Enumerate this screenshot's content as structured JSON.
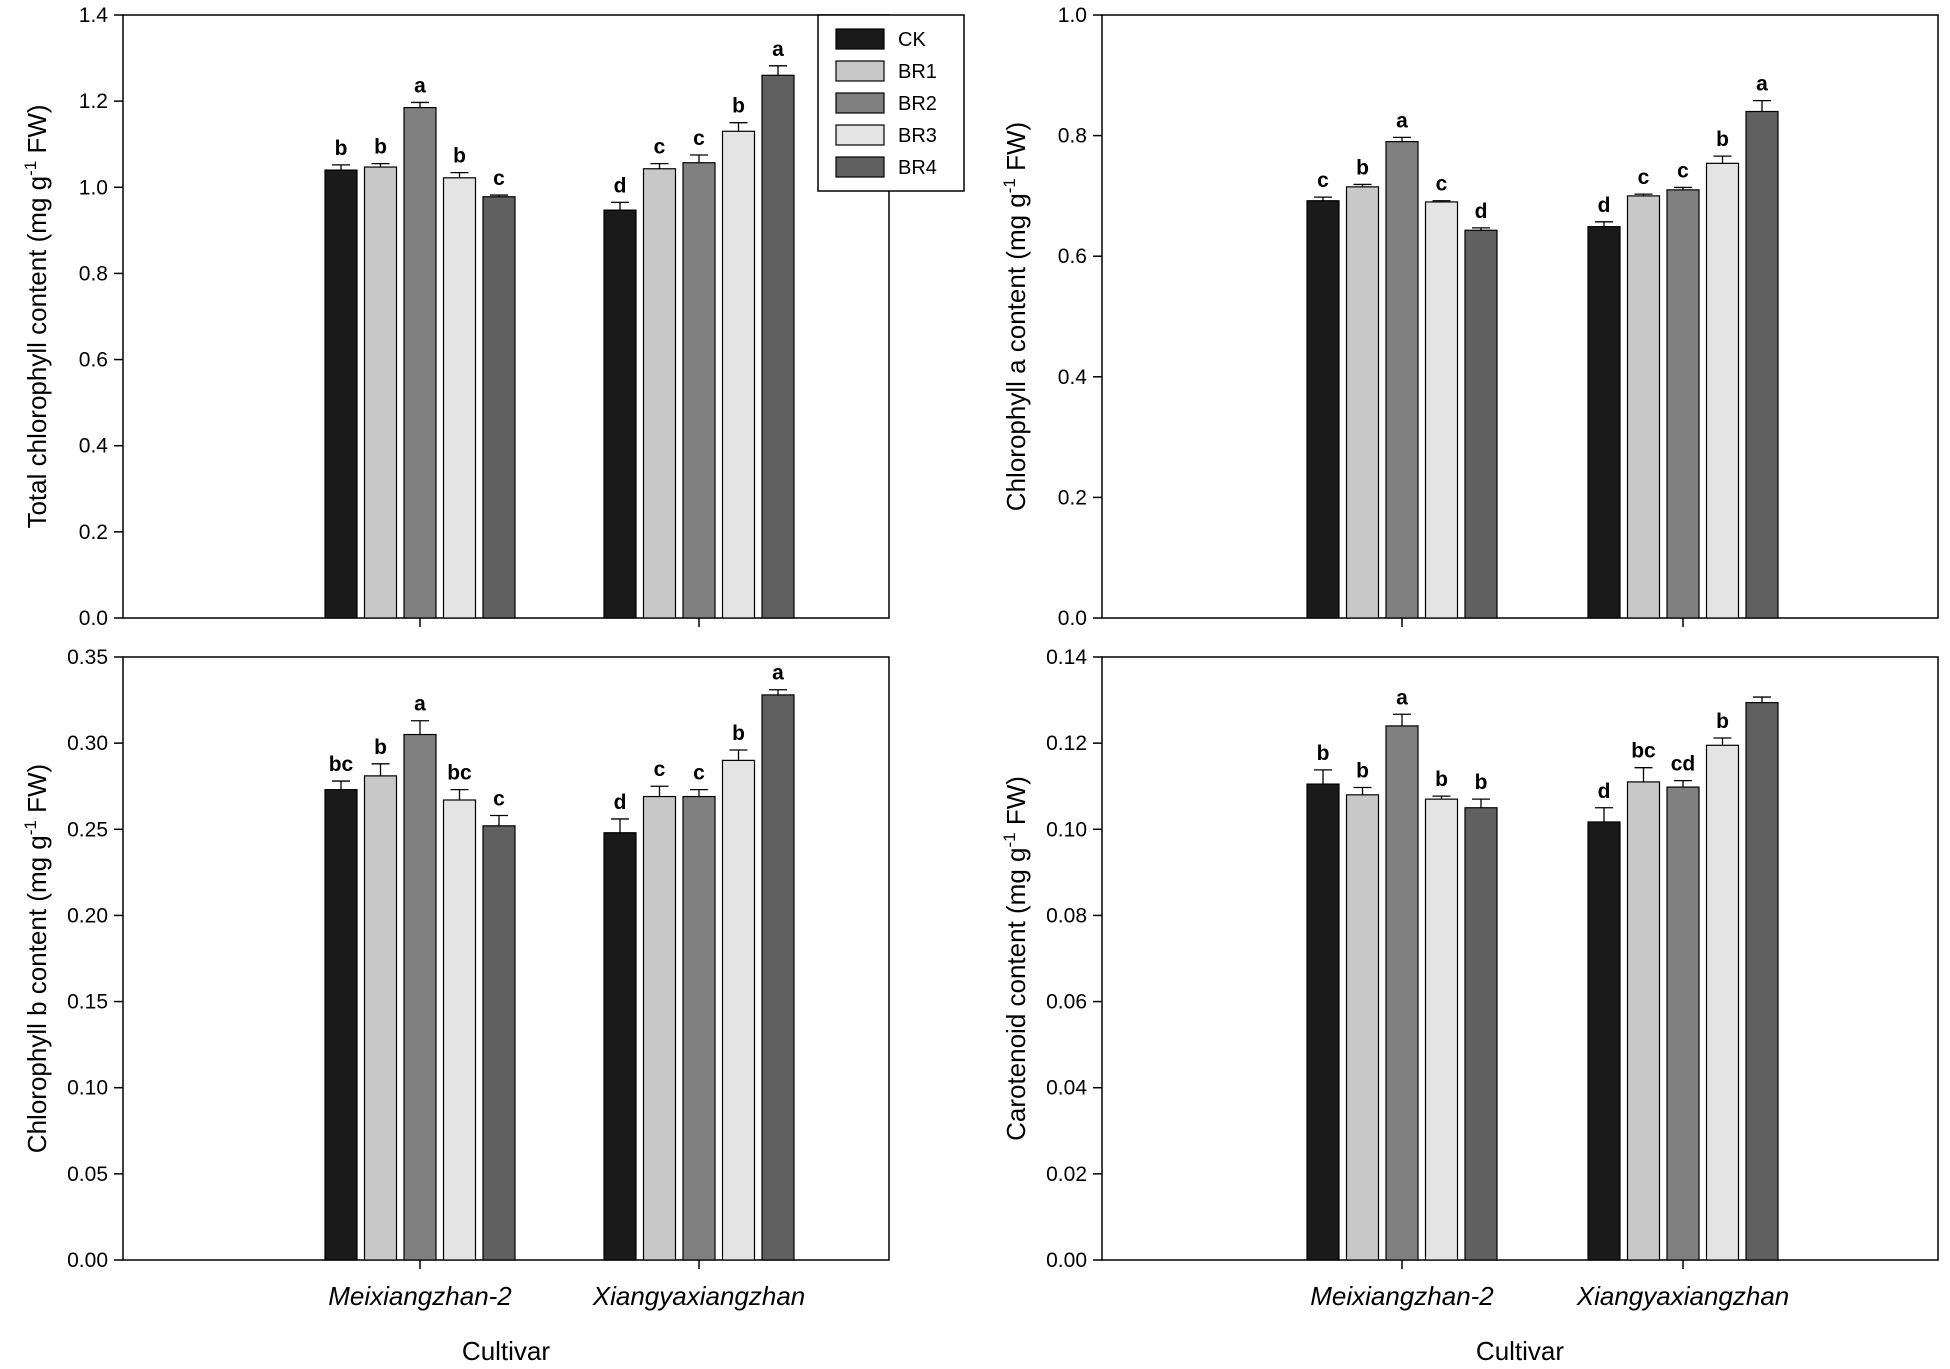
{
  "colors": {
    "CK": "#1a1a1a",
    "BR1": "#c8c8c8",
    "BR2": "#808080",
    "BR3": "#e4e4e4",
    "BR4": "#606060"
  },
  "legend": [
    "CK",
    "BR1",
    "BR2",
    "BR3",
    "BR4"
  ],
  "xlabel": "Cultivar",
  "chart_data": [
    {
      "type": "bar",
      "panel": "top-left",
      "ylabel_pre": "Total chlorophyll content (mg g",
      "ylabel_sup": "-1",
      "ylabel_post": " FW)",
      "ylim": [
        0,
        1.4
      ],
      "yticks": [
        "0.0",
        "0.2",
        "0.4",
        "0.6",
        "0.8",
        "1.0",
        "1.2",
        "1.4"
      ],
      "categories": [
        "Meixiangzhan-2",
        "Xiangyaxiangzhan"
      ],
      "show_categories": false,
      "series": [
        {
          "name": "CK",
          "values": [
            1.04,
            0.947
          ],
          "errors": [
            0.012,
            0.018
          ],
          "labels": [
            "b",
            "d"
          ]
        },
        {
          "name": "BR1",
          "values": [
            1.047,
            1.043
          ],
          "errors": [
            0.008,
            0.012
          ],
          "labels": [
            "b",
            "c"
          ]
        },
        {
          "name": "BR2",
          "values": [
            1.185,
            1.057
          ],
          "errors": [
            0.012,
            0.018
          ],
          "labels": [
            "a",
            "c"
          ]
        },
        {
          "name": "BR3",
          "values": [
            1.022,
            1.13
          ],
          "errors": [
            0.012,
            0.02
          ],
          "labels": [
            "b",
            "b"
          ]
        },
        {
          "name": "BR4",
          "values": [
            0.978,
            1.26
          ],
          "errors": [
            0.004,
            0.022
          ],
          "labels": [
            "c",
            "a"
          ]
        }
      ]
    },
    {
      "type": "bar",
      "panel": "top-right",
      "ylabel_pre": "Chlorophyll a content (mg g",
      "ylabel_sup": "-1",
      "ylabel_post": " FW)",
      "ylim": [
        0,
        1.0
      ],
      "yticks": [
        "0.0",
        "0.2",
        "0.4",
        "0.6",
        "0.8",
        "1.0"
      ],
      "categories": [
        "Meixiangzhan-2",
        "Xiangyaxiangzhan"
      ],
      "show_categories": false,
      "series": [
        {
          "name": "CK",
          "values": [
            0.692,
            0.649
          ],
          "errors": [
            0.006,
            0.008
          ],
          "labels": [
            "c",
            "d"
          ]
        },
        {
          "name": "BR1",
          "values": [
            0.715,
            0.7
          ],
          "errors": [
            0.004,
            0.003
          ],
          "labels": [
            "b",
            "c"
          ]
        },
        {
          "name": "BR2",
          "values": [
            0.79,
            0.71
          ],
          "errors": [
            0.007,
            0.004
          ],
          "labels": [
            "a",
            "c"
          ]
        },
        {
          "name": "BR3",
          "values": [
            0.69,
            0.754
          ],
          "errors": [
            0.002,
            0.012
          ],
          "labels": [
            "c",
            "b"
          ]
        },
        {
          "name": "BR4",
          "values": [
            0.643,
            0.84
          ],
          "errors": [
            0.004,
            0.018
          ],
          "labels": [
            "d",
            "a"
          ]
        }
      ]
    },
    {
      "type": "bar",
      "panel": "bottom-left",
      "ylabel_pre": "Chlorophyll b content (mg g",
      "ylabel_sup": "-1",
      "ylabel_post": " FW)",
      "ylim": [
        0,
        0.35
      ],
      "yticks": [
        "0.00",
        "0.05",
        "0.10",
        "0.15",
        "0.20",
        "0.25",
        "0.30",
        "0.35"
      ],
      "categories": [
        "Meixiangzhan-2",
        "Xiangyaxiangzhan"
      ],
      "show_categories": true,
      "series": [
        {
          "name": "CK",
          "values": [
            0.273,
            0.248
          ],
          "errors": [
            0.005,
            0.008
          ],
          "labels": [
            "bc",
            "d"
          ]
        },
        {
          "name": "BR1",
          "values": [
            0.281,
            0.269
          ],
          "errors": [
            0.007,
            0.006
          ],
          "labels": [
            "b",
            "c"
          ]
        },
        {
          "name": "BR2",
          "values": [
            0.305,
            0.269
          ],
          "errors": [
            0.008,
            0.004
          ],
          "labels": [
            "a",
            "c"
          ]
        },
        {
          "name": "BR3",
          "values": [
            0.267,
            0.29
          ],
          "errors": [
            0.006,
            0.006
          ],
          "labels": [
            "bc",
            "b"
          ]
        },
        {
          "name": "BR4",
          "values": [
            0.252,
            0.328
          ],
          "errors": [
            0.006,
            0.003
          ],
          "labels": [
            "c",
            "a"
          ]
        }
      ]
    },
    {
      "type": "bar",
      "panel": "bottom-right",
      "ylabel_pre": "Carotenoid content (mg g",
      "ylabel_sup": "-1",
      "ylabel_post": " FW)",
      "ylim": [
        0,
        0.14
      ],
      "yticks": [
        "0.00",
        "0.02",
        "0.04",
        "0.06",
        "0.08",
        "0.10",
        "0.12",
        "0.14"
      ],
      "categories": [
        "Meixiangzhan-2",
        "Xiangyaxiangzhan"
      ],
      "show_categories": true,
      "series": [
        {
          "name": "CK",
          "values": [
            0.1105,
            0.1017
          ],
          "errors": [
            0.0033,
            0.0033
          ],
          "labels": [
            "b",
            "d"
          ]
        },
        {
          "name": "BR1",
          "values": [
            0.108,
            0.111
          ],
          "errors": [
            0.0017,
            0.0033
          ],
          "labels": [
            "b",
            "bc"
          ]
        },
        {
          "name": "BR2",
          "values": [
            0.124,
            0.1098
          ],
          "errors": [
            0.0027,
            0.0015
          ],
          "labels": [
            "a",
            "cd"
          ]
        },
        {
          "name": "BR3",
          "values": [
            0.107,
            0.1195
          ],
          "errors": [
            0.0007,
            0.0017
          ],
          "labels": [
            "b",
            "b"
          ]
        },
        {
          "name": "BR4",
          "values": [
            0.105,
            0.1294
          ],
          "errors": [
            0.002,
            0.0013
          ],
          "labels": [
            "b",
            ""
          ]
        }
      ]
    }
  ]
}
